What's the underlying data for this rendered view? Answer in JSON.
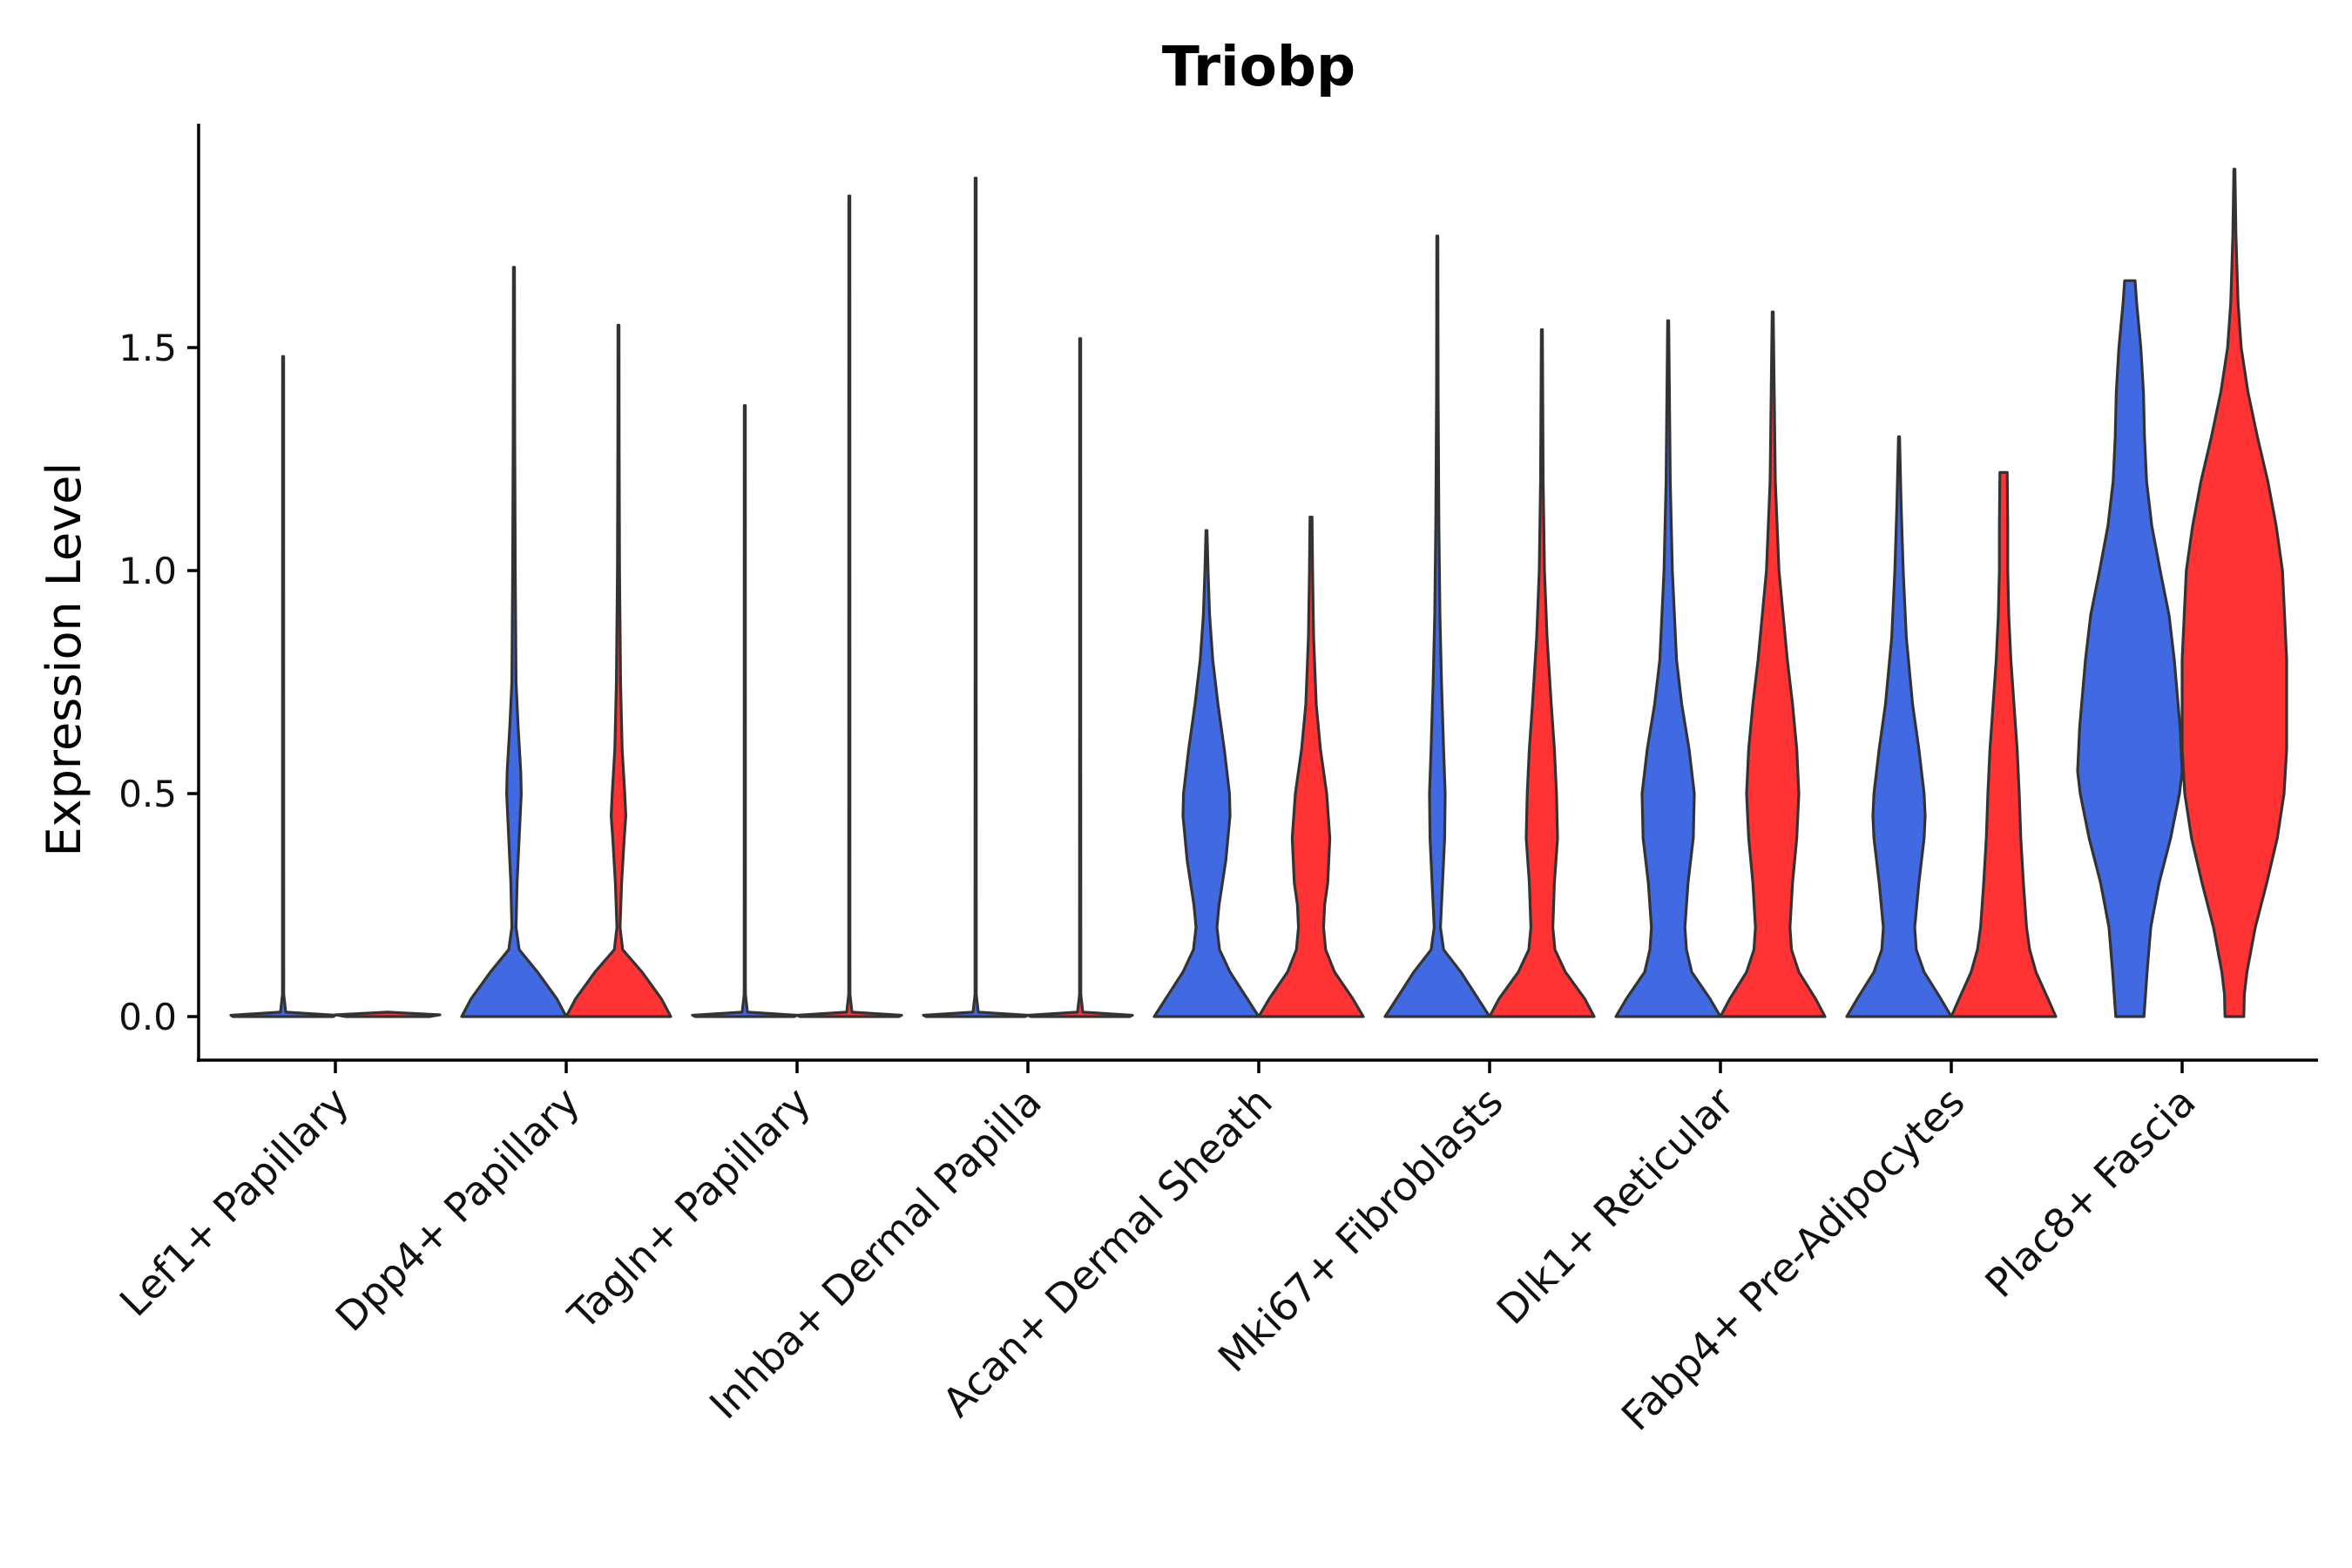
{
  "chart_data": {
    "type": "violin",
    "title": "Triobp",
    "xlabel": "",
    "ylabel": "Expression Level",
    "ylim": [
      -0.1,
      2.0
    ],
    "yticks": [
      0.0,
      0.5,
      1.0,
      1.5
    ],
    "ytick_labels": [
      "0.0",
      "0.5",
      "1.0",
      "1.5"
    ],
    "colors": {
      "blue": "#4169E1",
      "red": "#FF3333",
      "outline": "#333333"
    },
    "categories": [
      "Lef1+ Papillary",
      "Dpp4+ Papillary",
      "Tagln+ Papillary",
      "Inhba+ Dermal Papilla",
      "Acan+ Dermal Sheath",
      "Mki67+ Fibroblasts",
      "Dlk1+ Reticular",
      "Fabp4+ Pre-Adipocytes",
      "Plac8+ Fascia"
    ],
    "violins": [
      {
        "category": 0,
        "group": "blue",
        "max": 1.48,
        "profile": [
          [
            0,
            0.96
          ],
          [
            0.003,
            1
          ],
          [
            0.01,
            0.05
          ],
          [
            0.05,
            0.012
          ],
          [
            1.48,
            0.01
          ]
        ]
      },
      {
        "category": 0,
        "group": "red",
        "max": 0,
        "profile": [
          [
            0,
            0.8
          ],
          [
            0.004,
            1
          ],
          [
            0.01,
            0
          ]
        ]
      },
      {
        "category": 1,
        "group": "blue",
        "max": 1.68,
        "profile": [
          [
            0,
            1.0
          ],
          [
            0.04,
            0.82
          ],
          [
            0.1,
            0.45
          ],
          [
            0.15,
            0.1
          ],
          [
            0.2,
            0.04
          ],
          [
            0.3,
            0.06
          ],
          [
            0.4,
            0.1
          ],
          [
            0.5,
            0.14
          ],
          [
            0.55,
            0.13
          ],
          [
            0.65,
            0.08
          ],
          [
            0.75,
            0.04
          ],
          [
            1.0,
            0.025
          ],
          [
            1.3,
            0.015
          ],
          [
            1.68,
            0.01
          ]
        ]
      },
      {
        "category": 1,
        "group": "red",
        "max": 1.55,
        "profile": [
          [
            0,
            1.0
          ],
          [
            0.04,
            0.82
          ],
          [
            0.1,
            0.45
          ],
          [
            0.15,
            0.08
          ],
          [
            0.2,
            0.03
          ],
          [
            0.3,
            0.06
          ],
          [
            0.4,
            0.11
          ],
          [
            0.45,
            0.14
          ],
          [
            0.5,
            0.12
          ],
          [
            0.6,
            0.07
          ],
          [
            0.75,
            0.04
          ],
          [
            1.0,
            0.02
          ],
          [
            1.3,
            0.012
          ],
          [
            1.55,
            0.01
          ]
        ]
      },
      {
        "category": 2,
        "group": "blue",
        "max": 1.37,
        "profile": [
          [
            0,
            0.95
          ],
          [
            0.003,
            1
          ],
          [
            0.01,
            0.05
          ],
          [
            0.05,
            0.012
          ],
          [
            1.37,
            0.01
          ]
        ]
      },
      {
        "category": 2,
        "group": "red",
        "max": 1.84,
        "profile": [
          [
            0,
            0.95
          ],
          [
            0.003,
            1
          ],
          [
            0.01,
            0.05
          ],
          [
            0.05,
            0.012
          ],
          [
            1.84,
            0.01
          ]
        ]
      },
      {
        "category": 3,
        "group": "blue",
        "max": 1.88,
        "profile": [
          [
            0,
            0.95
          ],
          [
            0.003,
            1
          ],
          [
            0.01,
            0.05
          ],
          [
            0.05,
            0.012
          ],
          [
            1.88,
            0.01
          ]
        ]
      },
      {
        "category": 3,
        "group": "red",
        "max": 1.52,
        "profile": [
          [
            0,
            0.95
          ],
          [
            0.003,
            1
          ],
          [
            0.01,
            0.05
          ],
          [
            0.05,
            0.012
          ],
          [
            1.52,
            0.01
          ]
        ]
      },
      {
        "category": 4,
        "group": "blue",
        "max": 1.09,
        "profile": [
          [
            0,
            1.0
          ],
          [
            0.04,
            0.78
          ],
          [
            0.1,
            0.45
          ],
          [
            0.15,
            0.25
          ],
          [
            0.2,
            0.2
          ],
          [
            0.25,
            0.24
          ],
          [
            0.35,
            0.37
          ],
          [
            0.45,
            0.45
          ],
          [
            0.5,
            0.44
          ],
          [
            0.6,
            0.34
          ],
          [
            0.7,
            0.22
          ],
          [
            0.8,
            0.12
          ],
          [
            0.9,
            0.06
          ],
          [
            1.0,
            0.03
          ],
          [
            1.09,
            0.01
          ]
        ]
      },
      {
        "category": 4,
        "group": "red",
        "max": 1.12,
        "profile": [
          [
            0,
            1.0
          ],
          [
            0.04,
            0.8
          ],
          [
            0.1,
            0.45
          ],
          [
            0.15,
            0.28
          ],
          [
            0.2,
            0.24
          ],
          [
            0.25,
            0.26
          ],
          [
            0.3,
            0.32
          ],
          [
            0.4,
            0.36
          ],
          [
            0.5,
            0.3
          ],
          [
            0.6,
            0.18
          ],
          [
            0.7,
            0.1
          ],
          [
            0.85,
            0.05
          ],
          [
            1.0,
            0.03
          ],
          [
            1.12,
            0.02
          ]
        ]
      },
      {
        "category": 5,
        "group": "blue",
        "max": 1.75,
        "profile": [
          [
            0,
            1.0
          ],
          [
            0.04,
            0.78
          ],
          [
            0.1,
            0.45
          ],
          [
            0.15,
            0.12
          ],
          [
            0.2,
            0.06
          ],
          [
            0.3,
            0.1
          ],
          [
            0.4,
            0.14
          ],
          [
            0.5,
            0.15
          ],
          [
            0.6,
            0.12
          ],
          [
            0.75,
            0.08
          ],
          [
            0.9,
            0.05
          ],
          [
            1.1,
            0.03
          ],
          [
            1.4,
            0.015
          ],
          [
            1.75,
            0.01
          ]
        ]
      },
      {
        "category": 5,
        "group": "red",
        "max": 1.54,
        "profile": [
          [
            0,
            1.0
          ],
          [
            0.04,
            0.82
          ],
          [
            0.1,
            0.45
          ],
          [
            0.15,
            0.25
          ],
          [
            0.2,
            0.21
          ],
          [
            0.3,
            0.24
          ],
          [
            0.4,
            0.3
          ],
          [
            0.5,
            0.28
          ],
          [
            0.6,
            0.24
          ],
          [
            0.7,
            0.18
          ],
          [
            0.85,
            0.1
          ],
          [
            1.0,
            0.05
          ],
          [
            1.2,
            0.025
          ],
          [
            1.54,
            0.01
          ]
        ]
      },
      {
        "category": 6,
        "group": "blue",
        "max": 1.56,
        "profile": [
          [
            0,
            1.0
          ],
          [
            0.04,
            0.8
          ],
          [
            0.1,
            0.45
          ],
          [
            0.15,
            0.35
          ],
          [
            0.2,
            0.32
          ],
          [
            0.3,
            0.38
          ],
          [
            0.4,
            0.48
          ],
          [
            0.5,
            0.5
          ],
          [
            0.6,
            0.4
          ],
          [
            0.7,
            0.26
          ],
          [
            0.8,
            0.16
          ],
          [
            1.0,
            0.08
          ],
          [
            1.2,
            0.04
          ],
          [
            1.56,
            0.01
          ]
        ]
      },
      {
        "category": 6,
        "group": "red",
        "max": 1.58,
        "profile": [
          [
            0,
            1.0
          ],
          [
            0.04,
            0.82
          ],
          [
            0.1,
            0.5
          ],
          [
            0.15,
            0.36
          ],
          [
            0.2,
            0.33
          ],
          [
            0.3,
            0.38
          ],
          [
            0.4,
            0.46
          ],
          [
            0.5,
            0.5
          ],
          [
            0.6,
            0.46
          ],
          [
            0.7,
            0.38
          ],
          [
            0.8,
            0.28
          ],
          [
            0.9,
            0.2
          ],
          [
            1.0,
            0.12
          ],
          [
            1.2,
            0.05
          ],
          [
            1.58,
            0.01
          ]
        ]
      },
      {
        "category": 7,
        "group": "blue",
        "max": 1.3,
        "profile": [
          [
            0,
            1.0
          ],
          [
            0.04,
            0.8
          ],
          [
            0.1,
            0.48
          ],
          [
            0.15,
            0.33
          ],
          [
            0.2,
            0.3
          ],
          [
            0.3,
            0.38
          ],
          [
            0.4,
            0.48
          ],
          [
            0.45,
            0.5
          ],
          [
            0.5,
            0.48
          ],
          [
            0.6,
            0.38
          ],
          [
            0.7,
            0.26
          ],
          [
            0.85,
            0.14
          ],
          [
            1.0,
            0.08
          ],
          [
            1.15,
            0.04
          ],
          [
            1.3,
            0.01
          ]
        ]
      },
      {
        "category": 7,
        "group": "red",
        "max": 1.22,
        "profile": [
          [
            0,
            1.0
          ],
          [
            0.04,
            0.85
          ],
          [
            0.1,
            0.62
          ],
          [
            0.15,
            0.5
          ],
          [
            0.2,
            0.44
          ],
          [
            0.3,
            0.38
          ],
          [
            0.4,
            0.33
          ],
          [
            0.5,
            0.3
          ],
          [
            0.6,
            0.26
          ],
          [
            0.7,
            0.2
          ],
          [
            0.8,
            0.14
          ],
          [
            0.9,
            0.1
          ],
          [
            1.0,
            0.08
          ],
          [
            1.1,
            0.08
          ],
          [
            1.22,
            0.07
          ]
        ]
      },
      {
        "category": 8,
        "group": "blue",
        "max": 1.65,
        "profile": [
          [
            0,
            0.27
          ],
          [
            0.05,
            0.3
          ],
          [
            0.1,
            0.33
          ],
          [
            0.2,
            0.4
          ],
          [
            0.3,
            0.56
          ],
          [
            0.4,
            0.78
          ],
          [
            0.5,
            0.95
          ],
          [
            0.55,
            1.0
          ],
          [
            0.65,
            0.96
          ],
          [
            0.8,
            0.85
          ],
          [
            0.9,
            0.75
          ],
          [
            1.0,
            0.58
          ],
          [
            1.1,
            0.42
          ],
          [
            1.2,
            0.32
          ],
          [
            1.3,
            0.28
          ],
          [
            1.4,
            0.26
          ],
          [
            1.5,
            0.21
          ],
          [
            1.6,
            0.13
          ],
          [
            1.65,
            0.1
          ]
        ]
      },
      {
        "category": 8,
        "group": "red",
        "max": 1.9,
        "profile": [
          [
            0,
            0.18
          ],
          [
            0.05,
            0.19
          ],
          [
            0.1,
            0.24
          ],
          [
            0.2,
            0.4
          ],
          [
            0.3,
            0.62
          ],
          [
            0.4,
            0.82
          ],
          [
            0.5,
            0.95
          ],
          [
            0.6,
            1.0
          ],
          [
            0.8,
            1.0
          ],
          [
            1.0,
            0.92
          ],
          [
            1.1,
            0.8
          ],
          [
            1.2,
            0.64
          ],
          [
            1.3,
            0.44
          ],
          [
            1.4,
            0.26
          ],
          [
            1.5,
            0.13
          ],
          [
            1.6,
            0.07
          ],
          [
            1.75,
            0.03
          ],
          [
            1.9,
            0.01
          ]
        ]
      }
    ]
  }
}
